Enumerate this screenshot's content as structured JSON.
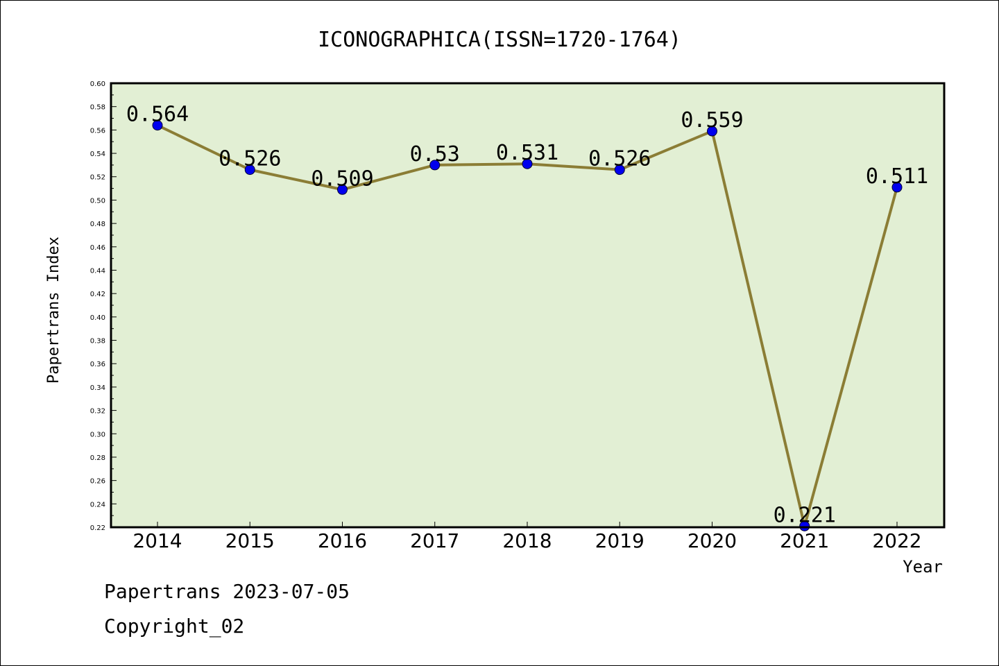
{
  "chart_data": {
    "type": "line",
    "title": "ICONOGRAPHICA(ISSN=1720-1764)",
    "xlabel": "Year",
    "ylabel": "Papertrans Index",
    "categories": [
      "2014",
      "2015",
      "2016",
      "2017",
      "2018",
      "2019",
      "2020",
      "2021",
      "2022"
    ],
    "series": [
      {
        "values": [
          0.564,
          0.526,
          0.509,
          0.53,
          0.531,
          0.526,
          0.559,
          0.221,
          0.511
        ],
        "labels": [
          "0.564",
          "0.526",
          "0.509",
          "0.53",
          "0.531",
          "0.526",
          "0.559",
          "0.221",
          "0.511"
        ]
      }
    ],
    "ylim": [
      0.22,
      0.6
    ],
    "yticks": [
      "0.22",
      "0.24",
      "0.26",
      "0.28",
      "0.30",
      "0.32",
      "0.34",
      "0.36",
      "0.38",
      "0.40",
      "0.42",
      "0.44",
      "0.46",
      "0.48",
      "0.50",
      "0.52",
      "0.54",
      "0.56",
      "0.58",
      "0.60"
    ],
    "grid": false,
    "legend": "none",
    "colors": {
      "plot_background": "#e2efd4",
      "line": "#8b7d35",
      "marker": "#0000ee"
    }
  },
  "footer": {
    "line1": "Papertrans 2023-07-05",
    "line2": "Copyright_02"
  }
}
